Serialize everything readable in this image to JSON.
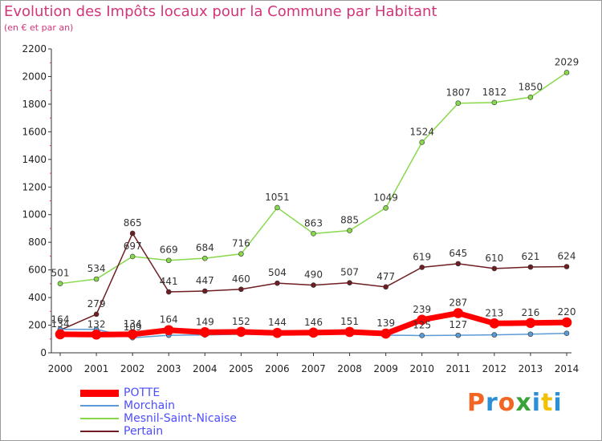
{
  "title": "Evolution des Impôts locaux pour la Commune par Habitant",
  "subtitle": "(en € et par an)",
  "logo": {
    "text": "Proxiti",
    "colors": [
      "#f26522",
      "#2a8fd6",
      "#f26522",
      "#3aa33a",
      "#2a8fd6",
      "#f2c200",
      "#2a8fd6"
    ]
  },
  "chart_data": {
    "type": "line",
    "title": "Evolution des Impôts locaux pour la Commune par Habitant",
    "subtitle": "(en € et par an)",
    "x": [
      "2000",
      "2001",
      "2002",
      "2003",
      "2004",
      "2005",
      "2006",
      "2007",
      "2008",
      "2009",
      "2010",
      "2011",
      "2012",
      "2013",
      "2014"
    ],
    "ylim": [
      0,
      2200
    ],
    "yticks": [
      "0",
      "200",
      "400",
      "600",
      "800",
      "1000",
      "1200",
      "1400",
      "1600",
      "1800",
      "2000",
      "2200"
    ],
    "grid": false,
    "legend_position": "bottom-left",
    "series": [
      {
        "name": "Mesnil-Saint-Nicaise",
        "color": "#88d84b",
        "width": 1.5,
        "values": [
          501,
          534,
          697,
          669,
          684,
          716,
          1051,
          863,
          885,
          1049,
          1524,
          1807,
          1812,
          1850,
          2029
        ],
        "labels": [
          "501",
          "534",
          "697",
          "669",
          "684",
          "716",
          "1051",
          "863",
          "885",
          "1049",
          "1524",
          "1807",
          "1812",
          "1850",
          "2029"
        ]
      },
      {
        "name": "Pertain",
        "color": "#6e1e22",
        "width": 1.5,
        "values": [
          164,
          279,
          865,
          441,
          447,
          460,
          504,
          490,
          507,
          477,
          619,
          645,
          610,
          621,
          624
        ],
        "labels": [
          "164",
          "279",
          "865",
          "441",
          "447",
          "460",
          "504",
          "490",
          "507",
          "477",
          "619",
          "645",
          "610",
          "621",
          "624"
        ]
      },
      {
        "name": "Morchain",
        "color": "#5b9bd5",
        "width": 1.5,
        "values": [
          170,
          170,
          109,
          127,
          129,
          134,
          130,
          134,
          136,
          128,
          125,
          127,
          130,
          135,
          141
        ],
        "labels": [
          "",
          "",
          "109",
          "",
          "",
          "",
          "",
          "",
          "",
          "",
          "125",
          "127",
          "",
          "",
          ""
        ]
      },
      {
        "name": "POTTE",
        "color": "#ff0000",
        "width": 7,
        "values": [
          134,
          132,
          134,
          164,
          149,
          152,
          144,
          146,
          151,
          139,
          239,
          287,
          213,
          216,
          220
        ],
        "labels": [
          "134",
          "132",
          "134",
          "164",
          "149",
          "152",
          "144",
          "146",
          "151",
          "139",
          "239",
          "287",
          "213",
          "216",
          "220"
        ]
      }
    ],
    "legend": [
      "POTTE",
      "Morchain",
      "Mesnil-Saint-Nicaise",
      "Pertain"
    ]
  }
}
